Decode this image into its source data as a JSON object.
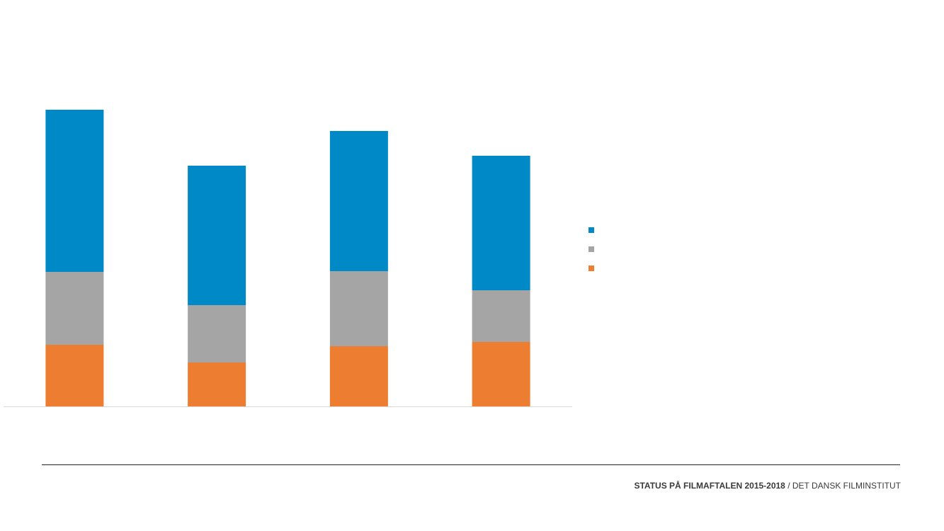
{
  "chart_data": {
    "type": "stacked-bar",
    "categories": [
      null,
      null,
      null,
      null
    ],
    "series": [
      {
        "color": "#ed7d31",
        "values": [
          87,
          62,
          85,
          91
        ]
      },
      {
        "color": "#a5a5a5",
        "values": [
          103,
          81,
          106,
          73
        ]
      },
      {
        "color": "#0089c7",
        "values": [
          229,
          197,
          198,
          190
        ]
      }
    ]
  },
  "footer": {
    "title": "STATUS PÅ FILMAFTALEN 2015-2018",
    "source": "/ DET DANSK FILMINSTITUT"
  }
}
